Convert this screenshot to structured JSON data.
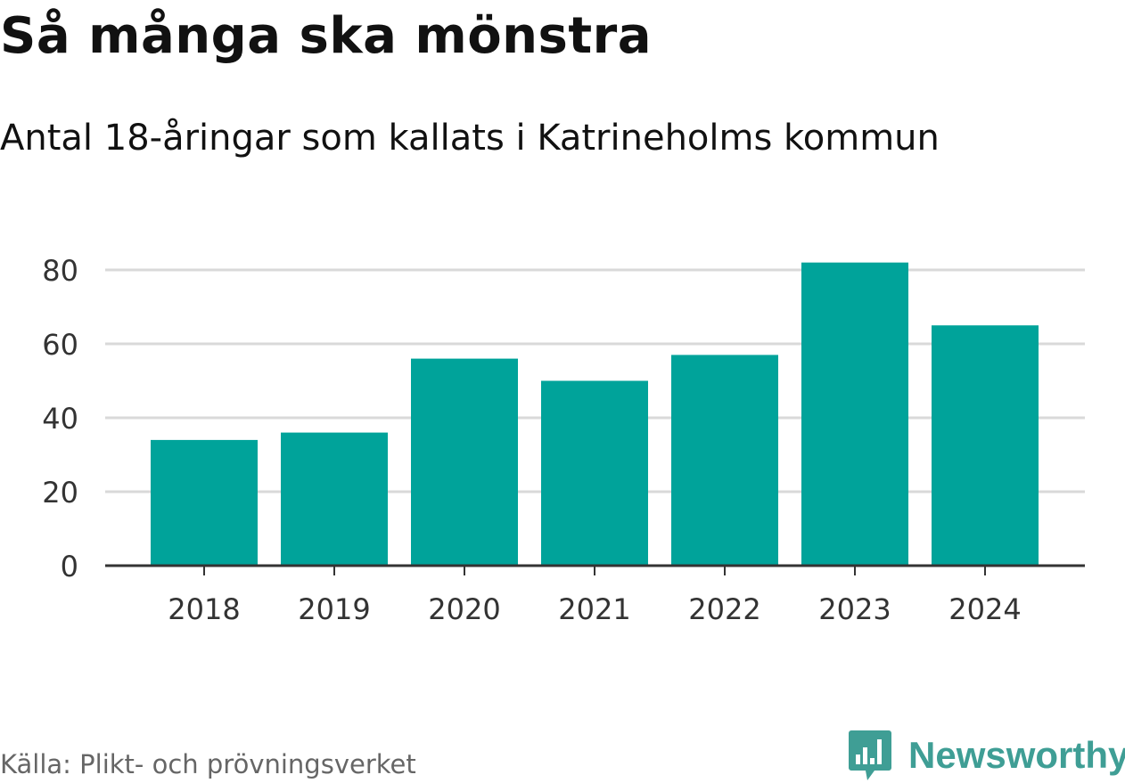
{
  "header": {
    "title": "Så många ska mönstra",
    "subtitle": "Antal 18-åringar som kallats i Katrineholms kommun"
  },
  "footer": {
    "source": "Källa: Plikt- och prövningsverket",
    "brand": "Newsworthy",
    "brand_icon": "bar-chart-badge-icon"
  },
  "colors": {
    "bar": "#00a39a",
    "grid": "#d9d9d9",
    "axis": "#333333",
    "tick_text": "#333333",
    "brand": "#3f9e95"
  },
  "chart_data": {
    "type": "bar",
    "title": "Så många ska mönstra",
    "subtitle": "Antal 18-åringar som kallats i Katrineholms kommun",
    "xlabel": "",
    "ylabel": "",
    "categories": [
      "2018",
      "2019",
      "2020",
      "2021",
      "2022",
      "2023",
      "2024"
    ],
    "values": [
      34,
      36,
      56,
      50,
      57,
      82,
      65
    ],
    "ylim": [
      0,
      80
    ],
    "yticks": [
      0,
      20,
      40,
      60,
      80
    ],
    "grid": true,
    "legend": "none"
  }
}
